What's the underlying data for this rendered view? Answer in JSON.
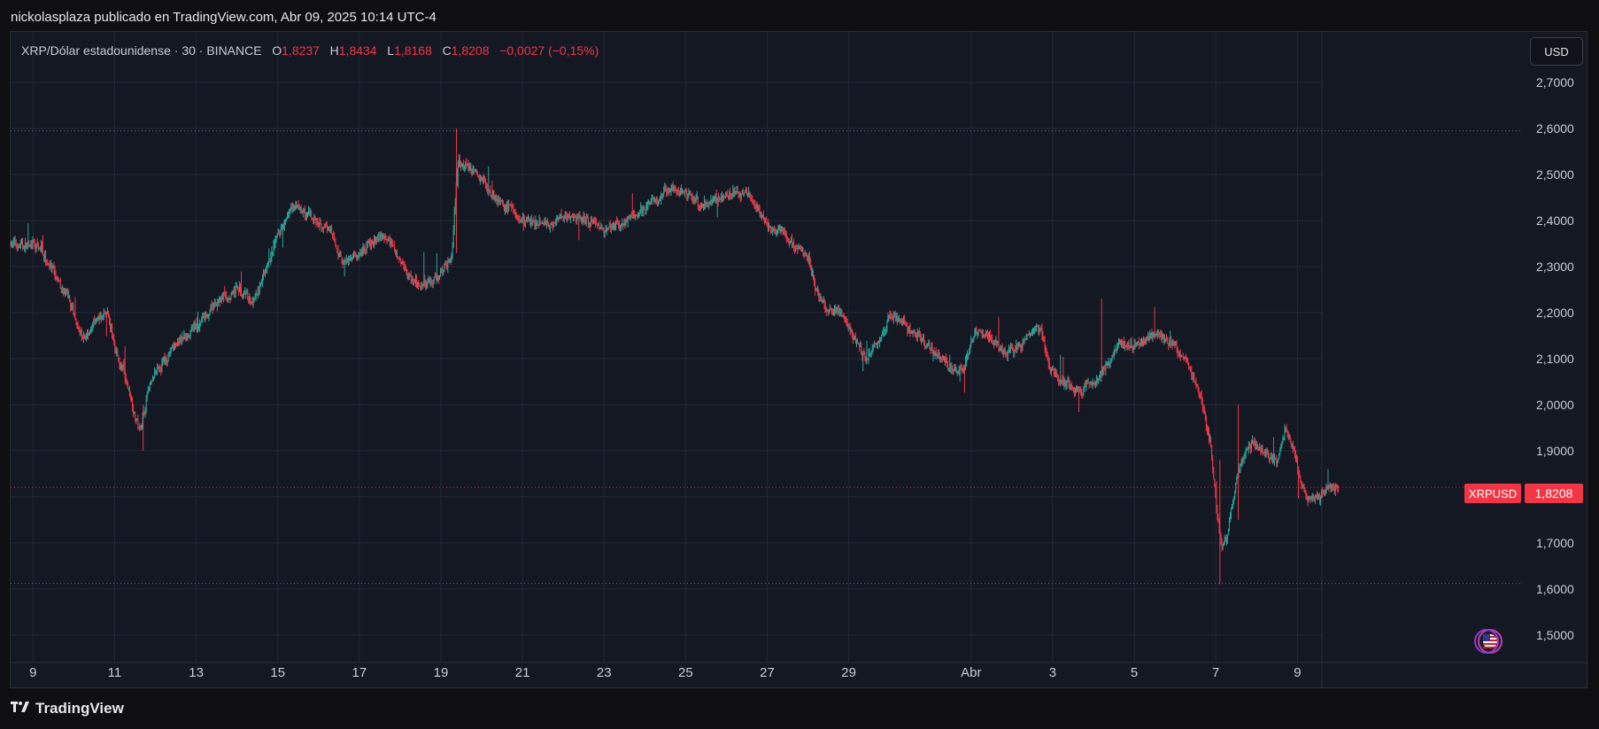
{
  "caption": "nickolasplaza publicado en TradingView.com, Abr 09, 2025 10:14 UTC-4",
  "legend": {
    "symbol_text": "XRP/Dólar estadounidense · 30 · BINANCE",
    "o_label": "O",
    "o_value": "1,8237",
    "h_label": "H",
    "h_value": "1,8434",
    "l_label": "L",
    "l_value": "1,8168",
    "c_label": "C",
    "c_value": "1,8208",
    "change": "−0,0027 (−0,15%)"
  },
  "currency_button": "USD",
  "price_badge": {
    "symbol": "XRPUSD",
    "price": "1,8208"
  },
  "flag_icon": "us-flag-icon",
  "brand": "TradingView",
  "colors": {
    "up": "#26a69a",
    "down": "#f23645",
    "background": "#141823",
    "grid": "#232838"
  },
  "chart_data": {
    "type": "candlestick",
    "symbol": "XRPUSD",
    "interval": "30",
    "exchange": "BINANCE",
    "y_ticks": [
      "2,7000",
      "2,6000",
      "2,5000",
      "2,4000",
      "2,3000",
      "2,2000",
      "2,1000",
      "2,0000",
      "1,9000",
      "1,8000",
      "1,7000",
      "1,6000",
      "1,5000"
    ],
    "y_tick_values": [
      2.7,
      2.6,
      2.5,
      2.4,
      2.3,
      2.2,
      2.1,
      2.0,
      1.9,
      1.8,
      1.7,
      1.6,
      1.5
    ],
    "ylim": [
      1.44,
      2.81
    ],
    "x_ticks": [
      "9",
      "11",
      "13",
      "15",
      "17",
      "19",
      "21",
      "23",
      "25",
      "27",
      "29",
      "Abr",
      "3",
      "5",
      "7",
      "9"
    ],
    "x_tick_days": [
      0,
      2,
      4,
      6,
      8,
      10,
      12,
      14,
      16,
      18,
      20,
      23,
      25,
      27,
      29,
      31
    ],
    "xlim": [
      -0.55,
      31.6
    ],
    "horizontal_levels": [
      2.595,
      1.8208,
      1.612
    ],
    "last_price": 1.8208,
    "path_points": [
      [
        -0.55,
        2.35
      ],
      [
        0.2,
        2.34
      ],
      [
        0.5,
        2.28
      ],
      [
        0.9,
        2.22
      ],
      [
        1.2,
        2.14
      ],
      [
        1.5,
        2.18
      ],
      [
        1.8,
        2.2
      ],
      [
        2.0,
        2.12
      ],
      [
        2.2,
        2.07
      ],
      [
        2.4,
        2.01
      ],
      [
        2.6,
        1.94
      ],
      [
        2.8,
        2.03
      ],
      [
        3.0,
        2.07
      ],
      [
        3.4,
        2.12
      ],
      [
        3.7,
        2.15
      ],
      [
        4.0,
        2.17
      ],
      [
        4.2,
        2.19
      ],
      [
        4.6,
        2.23
      ],
      [
        5.0,
        2.25
      ],
      [
        5.4,
        2.22
      ],
      [
        5.7,
        2.29
      ],
      [
        6.0,
        2.37
      ],
      [
        6.3,
        2.43
      ],
      [
        6.6,
        2.42
      ],
      [
        7.0,
        2.4
      ],
      [
        7.3,
        2.37
      ],
      [
        7.6,
        2.31
      ],
      [
        8.0,
        2.33
      ],
      [
        8.3,
        2.35
      ],
      [
        8.6,
        2.37
      ],
      [
        8.9,
        2.33
      ],
      [
        9.2,
        2.28
      ],
      [
        9.5,
        2.26
      ],
      [
        9.8,
        2.27
      ],
      [
        10.1,
        2.3
      ],
      [
        10.25,
        2.32
      ],
      [
        10.4,
        2.53
      ],
      [
        10.6,
        2.52
      ],
      [
        10.9,
        2.5
      ],
      [
        11.2,
        2.46
      ],
      [
        11.6,
        2.43
      ],
      [
        12.0,
        2.4
      ],
      [
        12.4,
        2.39
      ],
      [
        12.8,
        2.4
      ],
      [
        13.2,
        2.41
      ],
      [
        13.6,
        2.4
      ],
      [
        14.0,
        2.38
      ],
      [
        14.4,
        2.39
      ],
      [
        14.8,
        2.42
      ],
      [
        15.2,
        2.44
      ],
      [
        15.6,
        2.47
      ],
      [
        16.0,
        2.46
      ],
      [
        16.4,
        2.43
      ],
      [
        16.8,
        2.45
      ],
      [
        17.2,
        2.46
      ],
      [
        17.5,
        2.46
      ],
      [
        17.8,
        2.42
      ],
      [
        18.0,
        2.38
      ],
      [
        18.3,
        2.38
      ],
      [
        18.7,
        2.34
      ],
      [
        19.0,
        2.32
      ],
      [
        19.2,
        2.24
      ],
      [
        19.5,
        2.2
      ],
      [
        19.8,
        2.2
      ],
      [
        20.1,
        2.15
      ],
      [
        20.4,
        2.1
      ],
      [
        20.8,
        2.15
      ],
      [
        21.0,
        2.2
      ],
      [
        21.4,
        2.17
      ],
      [
        21.7,
        2.15
      ],
      [
        22.0,
        2.12
      ],
      [
        22.3,
        2.1
      ],
      [
        22.6,
        2.07
      ],
      [
        22.8,
        2.08
      ],
      [
        23.1,
        2.16
      ],
      [
        23.4,
        2.15
      ],
      [
        23.8,
        2.11
      ],
      [
        24.1,
        2.12
      ],
      [
        24.4,
        2.15
      ],
      [
        24.7,
        2.17
      ],
      [
        24.9,
        2.08
      ],
      [
        25.2,
        2.05
      ],
      [
        25.6,
        2.03
      ],
      [
        26.0,
        2.05
      ],
      [
        26.3,
        2.08
      ],
      [
        26.6,
        2.13
      ],
      [
        26.9,
        2.13
      ],
      [
        27.2,
        2.14
      ],
      [
        27.5,
        2.15
      ],
      [
        27.8,
        2.14
      ],
      [
        28.0,
        2.12
      ],
      [
        28.3,
        2.09
      ],
      [
        28.6,
        2.02
      ],
      [
        28.85,
        1.92
      ],
      [
        29.0,
        1.78
      ],
      [
        29.15,
        1.68
      ],
      [
        29.3,
        1.73
      ],
      [
        29.5,
        1.85
      ],
      [
        29.7,
        1.9
      ],
      [
        29.9,
        1.92
      ],
      [
        30.2,
        1.9
      ],
      [
        30.5,
        1.88
      ],
      [
        30.7,
        1.95
      ],
      [
        30.9,
        1.9
      ],
      [
        31.1,
        1.82
      ],
      [
        31.3,
        1.79
      ],
      [
        31.5,
        1.8
      ],
      [
        31.8,
        1.82
      ],
      [
        32.0,
        1.8208
      ]
    ]
  }
}
